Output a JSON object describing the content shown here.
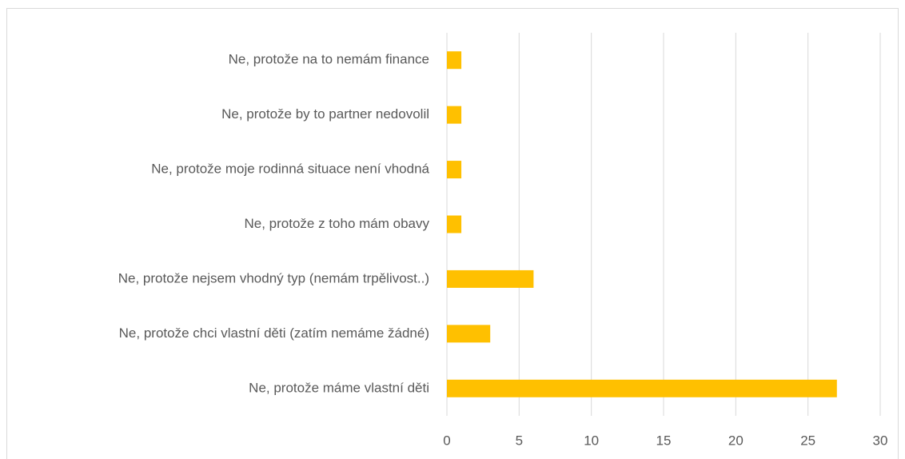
{
  "chart_data": {
    "type": "barh",
    "categories": [
      "Ne, protože na to nemám finance",
      "Ne, protože by to partner nedovolil",
      "Ne, protože moje rodinná situace není vhodná",
      "Ne, protože z toho mám obavy",
      "Ne, protože nejsem vhodný typ (nemám trpělivost..)",
      "Ne, protože chci vlastní děti (zatím nemáme žádné)",
      "Ne, protože máme vlastní děti"
    ],
    "values": [
      1,
      1,
      1,
      1,
      6,
      3,
      27
    ],
    "color": "#ffc000",
    "xlim": [
      0,
      30
    ],
    "xticks": [
      0,
      5,
      10,
      15,
      20,
      25,
      30
    ],
    "grid": true
  }
}
